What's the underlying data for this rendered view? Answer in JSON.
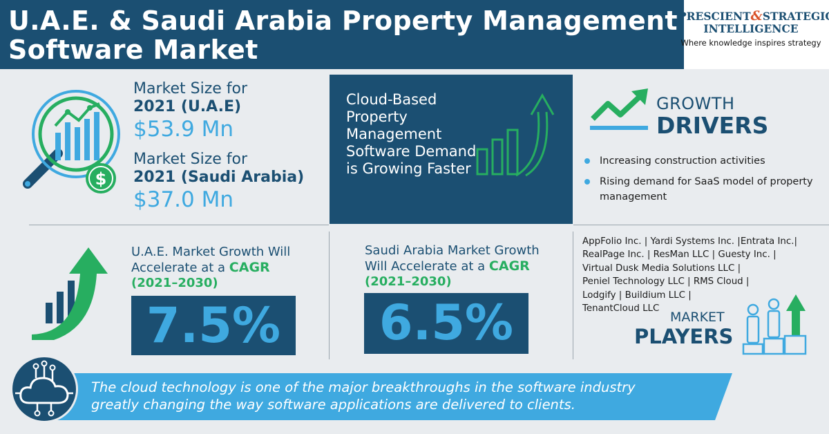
{
  "header": {
    "title_line1": "U.A.E. & Saudi Arabia Property Management",
    "title_line2": "Software Market",
    "logo_line1_a": "PRESCIENT",
    "logo_amp": "&",
    "logo_line1_b": "STRATEGIC",
    "logo_line2": "INTELLIGENCE",
    "logo_tagline": "Where knowledge inspires strategy"
  },
  "market_size": {
    "uae_label": "Market Size for",
    "uae_region": "2021 (U.A.E)",
    "uae_value": "$53.9 Mn",
    "sa_label": "Market Size for",
    "sa_region": "2021 (Saudi Arabia)",
    "sa_value": "$37.0 Mn"
  },
  "cloud": {
    "text": "Cloud-Based Property Management Software Demand is Growing Faster"
  },
  "growth_drivers": {
    "title_small": "GROWTH",
    "title_big": "DRIVERS",
    "items": [
      "Increasing construction activities",
      "Rising demand for SaaS model of property management"
    ]
  },
  "uae_cagr": {
    "line1": "U.A.E. Market Growth Will",
    "line2_prefix": "Accelerate at a ",
    "line2_label": "CAGR",
    "years": "(2021–2030)",
    "value": "7.5%"
  },
  "sa_cagr": {
    "line1": "Saudi Arabia Market Growth",
    "line2_prefix": "Will Accelerate at a ",
    "line2_label": "CAGR",
    "years": "(2021–2030)",
    "value": "6.5%"
  },
  "players": {
    "lines": [
      "AppFolio Inc. | Yardi Systems Inc. |Entrata Inc.|",
      "RealPage Inc. | ResMan LLC | Guesty Inc. |",
      "Virtual Dusk Media Solutions LLC |",
      "Peniel Technology LLC | RMS Cloud |",
      "Lodgify | Buildium LLC |",
      "TenantCloud LLC"
    ],
    "title_small": "MARKET",
    "title_big": "PLAYERS"
  },
  "banner": {
    "line1": "The cloud technology is one of the major breakthroughs in the software industry",
    "line2": "greatly changing the way software applications are delivered to clients."
  },
  "colors": {
    "navy": "#1b4f72",
    "light_blue": "#3fa9e0",
    "green": "#27ae60",
    "accent_orange": "#d9542b",
    "background": "#e9ecef"
  }
}
